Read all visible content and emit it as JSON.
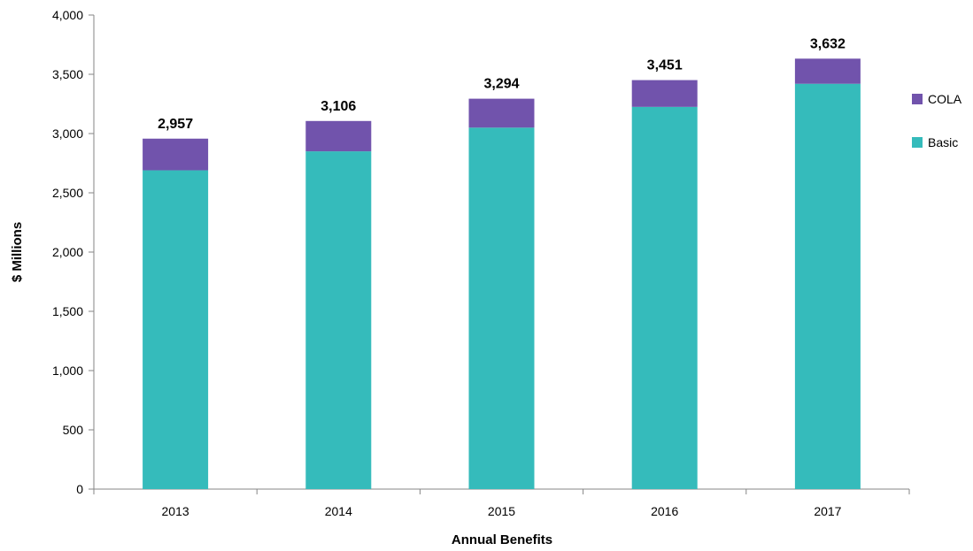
{
  "chart_data": {
    "type": "bar",
    "stacked": true,
    "categories": [
      "2013",
      "2014",
      "2015",
      "2016",
      "2017"
    ],
    "series": [
      {
        "name": "Basic",
        "values": [
          2690,
          2850,
          3050,
          3225,
          3420
        ],
        "color": "#35BBBB"
      },
      {
        "name": "COLA",
        "values": [
          267,
          256,
          244,
          226,
          212
        ],
        "color": "#7153AC"
      }
    ],
    "totals": [
      2957,
      3106,
      3294,
      3451,
      3632
    ],
    "total_labels": [
      "2,957",
      "3,106",
      "3,294",
      "3,451",
      "3,632"
    ],
    "title": "",
    "xlabel": "Annual Benefits",
    "ylabel": "$ Millions",
    "ylim": [
      0,
      4000
    ],
    "yticks": [
      0,
      500,
      1000,
      1500,
      2000,
      2500,
      3000,
      3500,
      4000
    ],
    "ytick_labels": [
      "0",
      "500",
      "1,000",
      "1,500",
      "2,000",
      "2,500",
      "3,000",
      "3,500",
      "4,000"
    ],
    "grid": false,
    "legend": {
      "position": "right",
      "entries": [
        {
          "label": "COLA",
          "color": "#7153AC"
        },
        {
          "label": "Basic",
          "color": "#35BBBB"
        }
      ]
    },
    "axis_color": "#868686"
  }
}
